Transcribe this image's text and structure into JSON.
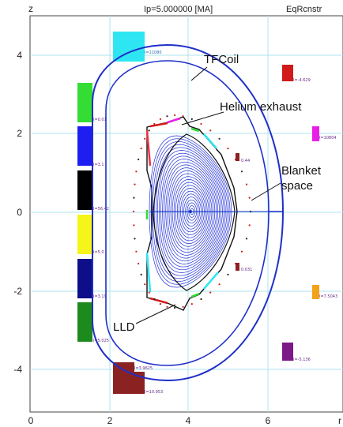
{
  "header": {
    "z_axis_label": "z",
    "title": "Ip=5.000000 [MA]",
    "app_name": "EqRcnstr"
  },
  "axes": {
    "x_ticks": [
      "0",
      "2",
      "4",
      "6"
    ],
    "y_ticks": [
      "4",
      "2",
      "0",
      "-2",
      "-4"
    ],
    "x_label_partial": "r"
  },
  "annotations": {
    "tfcoil": "TFCoil",
    "helium": "Helium exhaust",
    "blanket_line1": "Blanket",
    "blanket_line2": "space",
    "lld": "LLD"
  },
  "coil_labels": {
    "c_top": "I=11080",
    "c_right_top": "I=-4.629",
    "c_right_mid": "I=10804",
    "c_right_low": "I=7.5043",
    "c_right_bot": "I=-5.136",
    "c_bot1": "I=3.9625",
    "c_bot2": "I=10.953",
    "cs1": "I=0.01",
    "cs2": "I=3.1",
    "cs3": "I=56.42",
    "cs4": "I=5.0",
    "cs5": "I=3.19",
    "cs6": "I=5.025",
    "small_upper": "0.44",
    "small_lower": "0.031"
  },
  "colors": {
    "boundary": "#1f2fc8",
    "flux": "#2230d8",
    "axis_line": "#7fd3e6",
    "coil_cyan": "#2ee6f2",
    "coil_red": "#d11a1a",
    "coil_magenta": "#e81ee8",
    "coil_orange": "#f3a21a",
    "coil_purple": "#7c1a88",
    "coil_darkred": "#8b2222",
    "cs_green": "#33dd33",
    "cs_blue": "#1e1ef0",
    "cs_black": "#000000",
    "cs_yellow": "#f5f51a",
    "cs_navy": "#0e0e8a",
    "cs_darkgreen": "#1d8a1d"
  }
}
